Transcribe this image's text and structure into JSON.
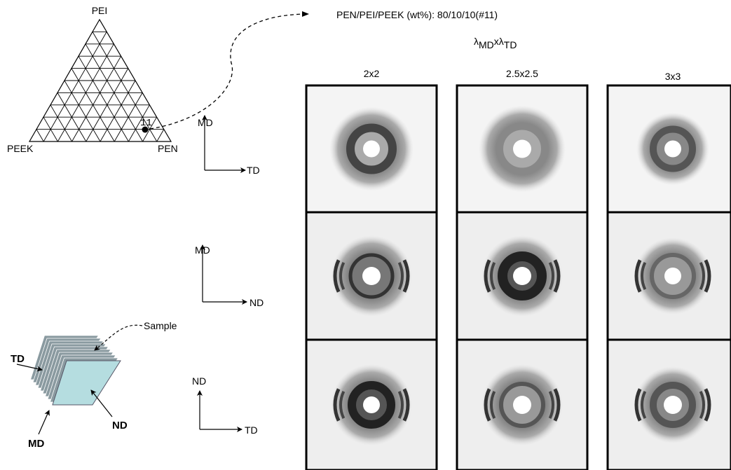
{
  "ternary": {
    "top": "PEI",
    "left": "PEEK",
    "right": "PEN",
    "point_label": "11"
  },
  "title": "PEN/PEI/PEEK (wt%): 80/10/10(#11)",
  "stretch_label": {
    "symbol1": "λ",
    "sub1": "MD",
    "times": "x",
    "symbol2": "λ",
    "sub2": "TD"
  },
  "columns": [
    "2x2",
    "2.5x2.5",
    "3x3"
  ],
  "axes": [
    {
      "vertical": "MD",
      "horizontal": "TD"
    },
    {
      "vertical": "MD",
      "horizontal": "ND"
    },
    {
      "vertical": "ND",
      "horizontal": "TD"
    }
  ],
  "sample": {
    "label": "Sample",
    "td": "TD",
    "md": "MD",
    "nd": "ND"
  }
}
